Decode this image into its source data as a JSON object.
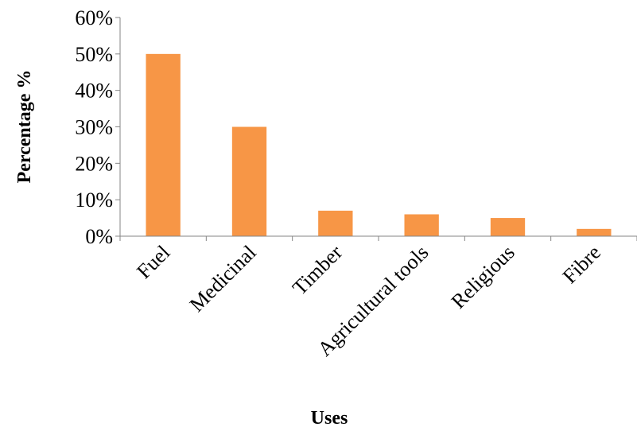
{
  "chart_data": {
    "type": "bar",
    "categories": [
      "Fuel",
      "Medicinal",
      "Timber",
      "Agricultural tools",
      "Religious",
      "Fibre"
    ],
    "values": [
      50,
      30,
      7,
      6,
      5,
      2
    ],
    "value_unit": "%",
    "xlabel": "Uses",
    "ylabel": "Percentage %",
    "ylim": [
      0,
      60
    ],
    "yticks": [
      0,
      10,
      20,
      30,
      40,
      50,
      60
    ],
    "ytick_labels": [
      "0%",
      "10%",
      "20%",
      "30%",
      "40%",
      "50%",
      "60%"
    ],
    "bar_color": "#F79646",
    "grid": false,
    "legend": "none"
  }
}
